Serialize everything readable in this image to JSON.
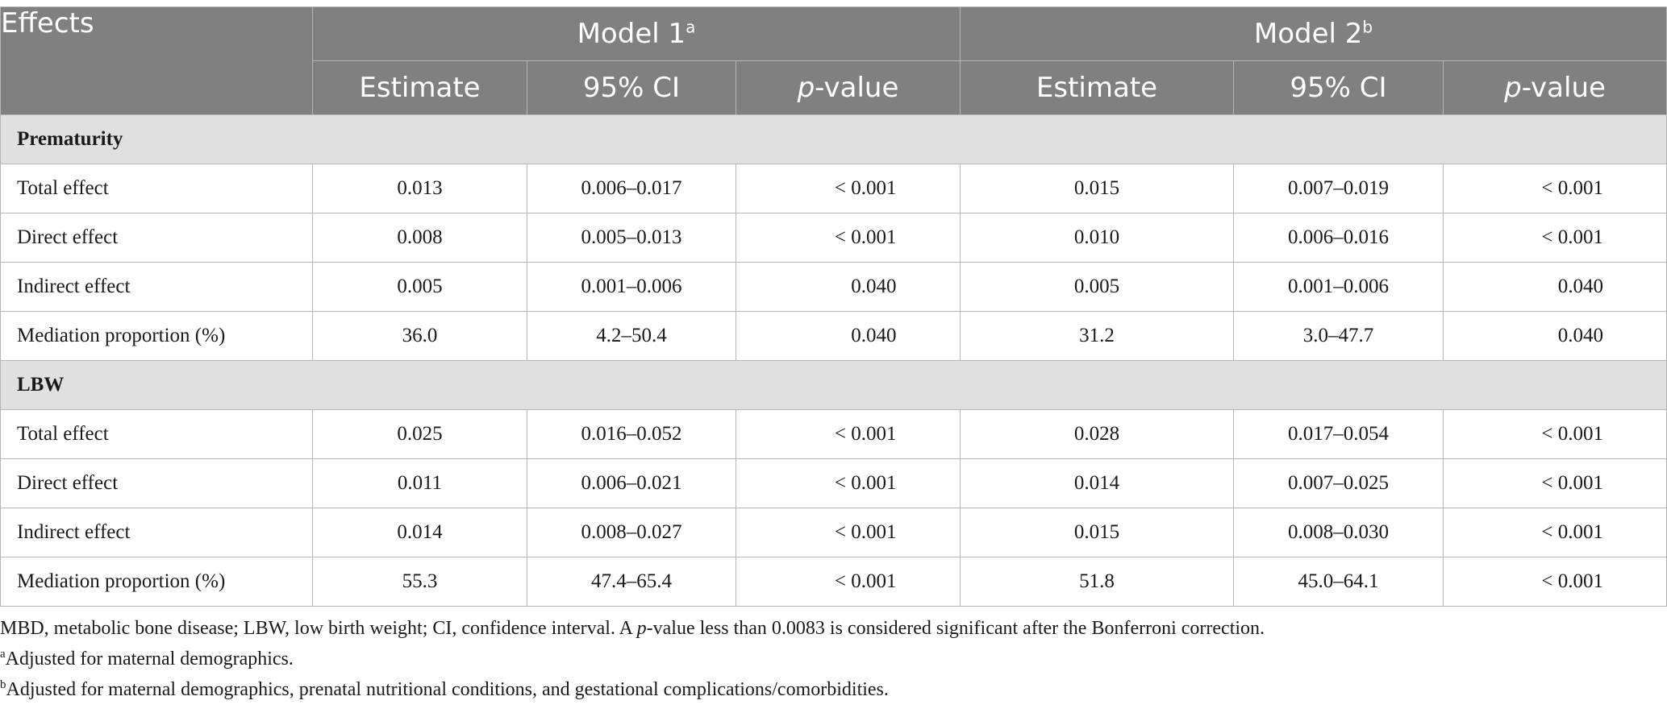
{
  "header": {
    "effects": "Effects",
    "model1": "Model 1",
    "model1_sup": "a",
    "model2": "Model 2",
    "model2_sup": "b",
    "estimate": "Estimate",
    "ci": "95% CI",
    "p_italic": "p",
    "p_suffix": "-value"
  },
  "sections": [
    {
      "title": "Prematurity",
      "rows": [
        {
          "label": "Total effect",
          "m1_est": "0.013",
          "m1_ci": "0.006–0.017",
          "m1_p": "< 0.001",
          "m2_est": "0.015",
          "m2_ci": "0.007–0.019",
          "m2_p": "< 0.001"
        },
        {
          "label": "Direct effect",
          "m1_est": "0.008",
          "m1_ci": "0.005–0.013",
          "m1_p": "< 0.001",
          "m2_est": "0.010",
          "m2_ci": "0.006–0.016",
          "m2_p": "< 0.001"
        },
        {
          "label": "Indirect effect",
          "m1_est": "0.005",
          "m1_ci": "0.001–0.006",
          "m1_p": "0.040",
          "m2_est": "0.005",
          "m2_ci": "0.001–0.006",
          "m2_p": "0.040"
        },
        {
          "label": "Mediation proportion (%)",
          "m1_est": "36.0",
          "m1_ci": "4.2–50.4",
          "m1_p": "0.040",
          "m2_est": "31.2",
          "m2_ci": "3.0–47.7",
          "m2_p": "0.040"
        }
      ]
    },
    {
      "title": "LBW",
      "rows": [
        {
          "label": "Total effect",
          "m1_est": "0.025",
          "m1_ci": "0.016–0.052",
          "m1_p": "< 0.001",
          "m2_est": "0.028",
          "m2_ci": "0.017–0.054",
          "m2_p": "< 0.001"
        },
        {
          "label": "Direct effect",
          "m1_est": "0.011",
          "m1_ci": "0.006–0.021",
          "m1_p": "< 0.001",
          "m2_est": "0.014",
          "m2_ci": "0.007–0.025",
          "m2_p": "< 0.001"
        },
        {
          "label": "Indirect effect",
          "m1_est": "0.014",
          "m1_ci": "0.008–0.027",
          "m1_p": "< 0.001",
          "m2_est": "0.015",
          "m2_ci": "0.008–0.030",
          "m2_p": "< 0.001"
        },
        {
          "label": "Mediation proportion (%)",
          "m1_est": "55.3",
          "m1_ci": "47.4–65.4",
          "m1_p": "< 0.001",
          "m2_est": "51.8",
          "m2_ci": "45.0–64.1",
          "m2_p": "< 0.001"
        }
      ]
    }
  ],
  "notes": {
    "line1_before": "MBD, metabolic bone disease; LBW, low birth weight; CI, confidence interval. A ",
    "line1_p": "p",
    "line1_after": "-value less than 0.0083 is considered significant after the Bonferroni correction.",
    "a_sup": "a",
    "a_text": "Adjusted for maternal demographics.",
    "b_sup": "b",
    "b_text": "Adjusted for maternal demographics, prenatal nutritional conditions, and gestational complications/comorbidities."
  },
  "colors": {
    "header_bg": "#808080",
    "section_bg": "#e0e0e0",
    "border": "#b5b5b5"
  }
}
